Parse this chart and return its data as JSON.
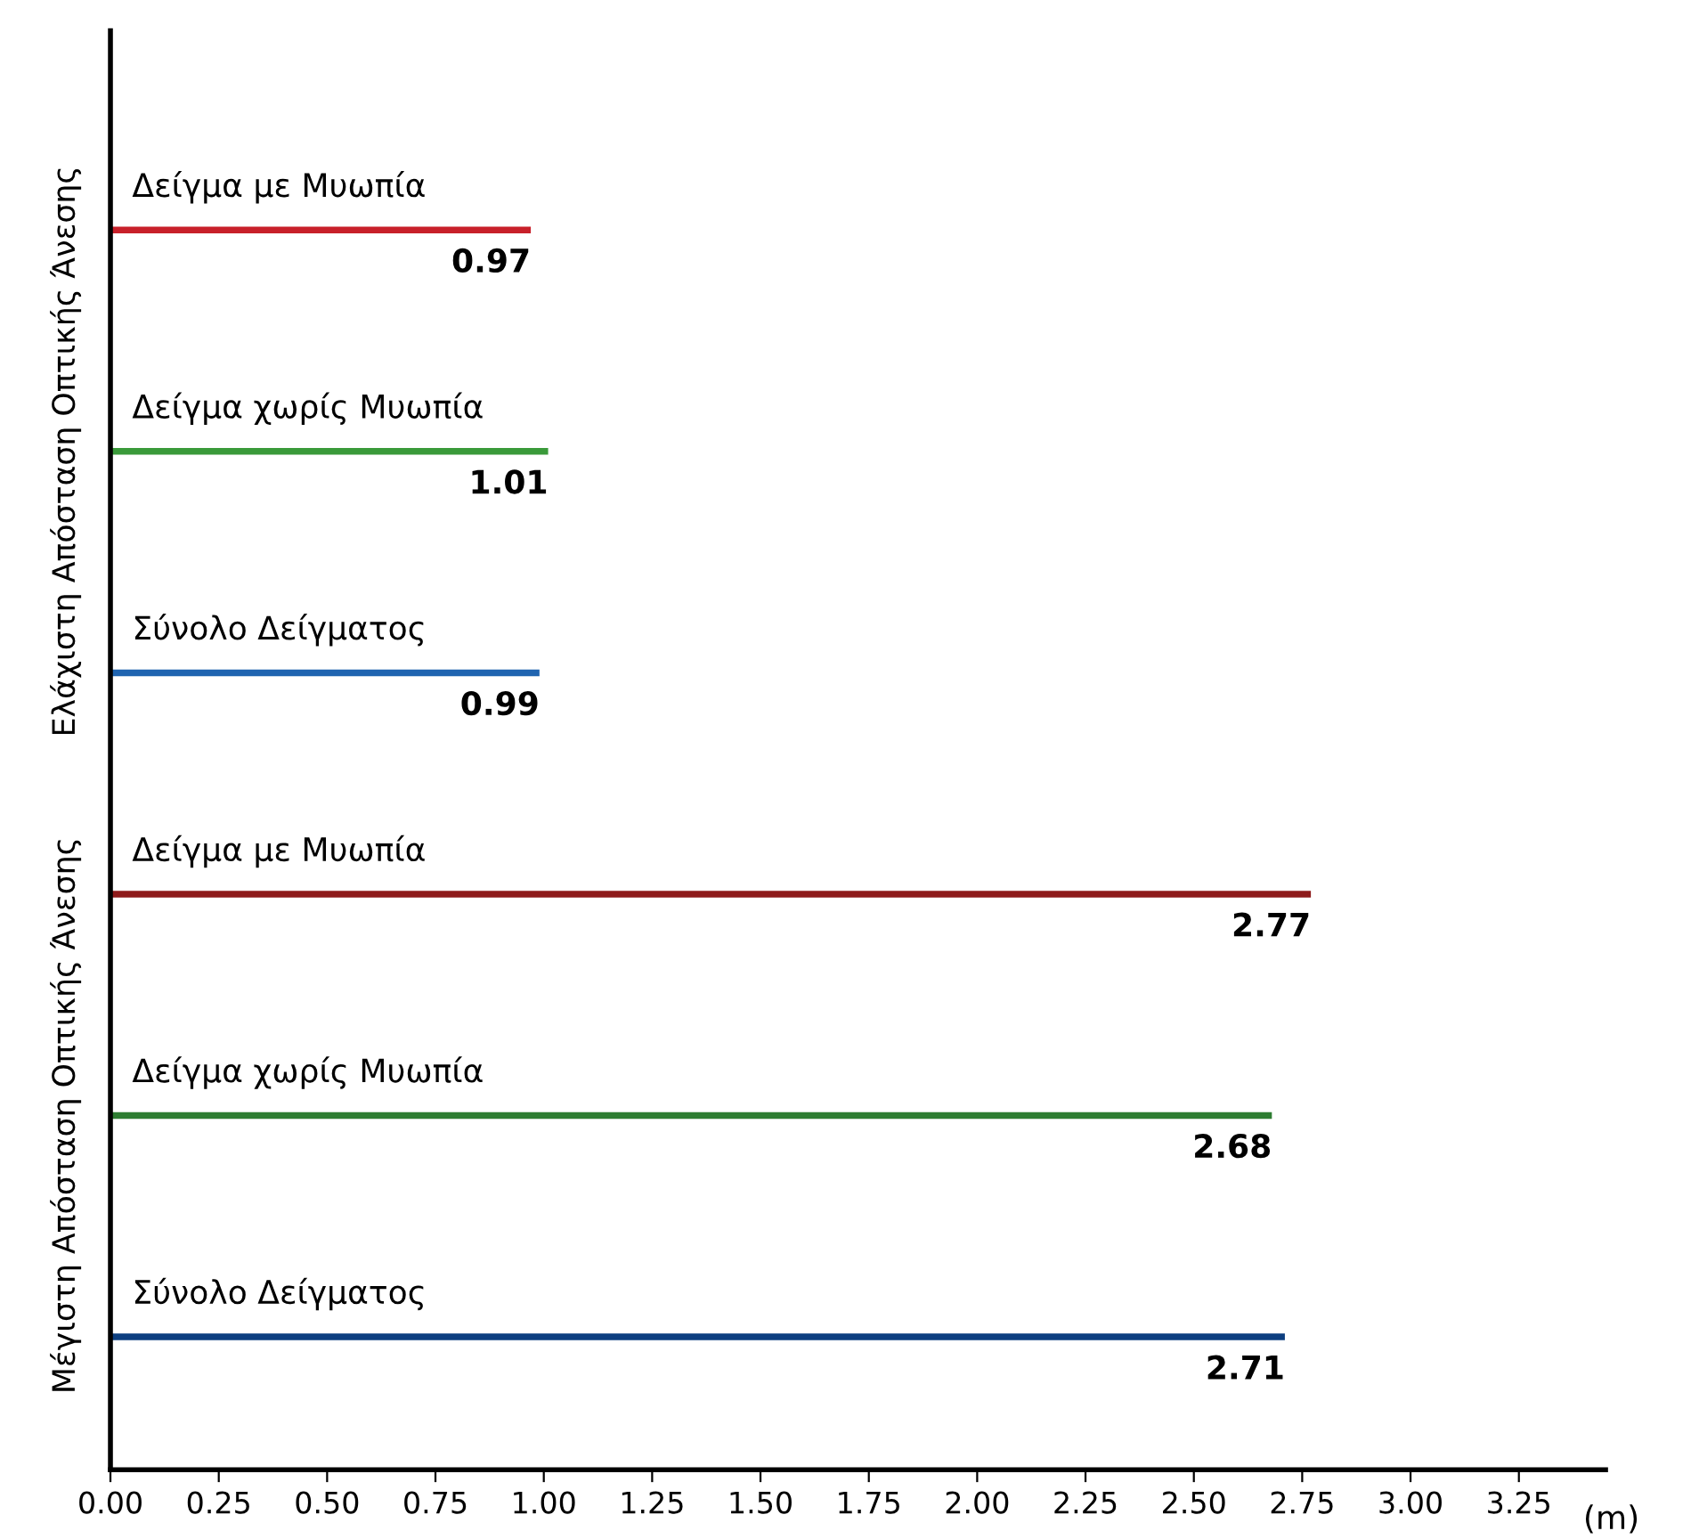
{
  "chart_data": {
    "type": "bar",
    "orientation": "horizontal",
    "categories": [
      "Δείγμα με Μυωπία",
      "Δείγμα χωρίς Μυωπία",
      "Σύνολο Δείγματος",
      "Δείγμα με Μυωπία",
      "Δείγμα χωρίς Μυωπία",
      "Σύνολο Δείγματος"
    ],
    "values": [
      0.97,
      1.01,
      0.99,
      2.77,
      2.68,
      2.71
    ],
    "colors": [
      "#c8202a",
      "#3a9a3a",
      "#1f64b0",
      "#8e1b1b",
      "#2e7d32",
      "#0d3f80"
    ],
    "data_labels": true,
    "xlabel": "(m)",
    "xlim": [
      0,
      3.45
    ],
    "xticks": [
      {
        "value": 0,
        "label": "0.00"
      },
      {
        "value": 0.25,
        "label": "0.25"
      },
      {
        "value": 0.5,
        "label": "0.50"
      },
      {
        "value": 0.75,
        "label": "0.75"
      },
      {
        "value": 1,
        "label": "1.00"
      },
      {
        "value": 1.25,
        "label": "1.25"
      },
      {
        "value": 1.5,
        "label": "1.50"
      },
      {
        "value": 1.75,
        "label": "1.75"
      },
      {
        "value": 2,
        "label": "2.00"
      },
      {
        "value": 2.25,
        "label": "2.25"
      },
      {
        "value": 2.5,
        "label": "2.50"
      },
      {
        "value": 2.75,
        "label": "2.75"
      },
      {
        "value": 3,
        "label": "3.00"
      },
      {
        "value": 3.25,
        "label": "3.25"
      }
    ],
    "tick_labels": "x",
    "grid": false,
    "annotations": [
      "Ελάχιστη Απόσταση Οπτικής Άνεσης",
      "Μέγιστη Απόσταση Οπτικής Άνεσης"
    ]
  }
}
